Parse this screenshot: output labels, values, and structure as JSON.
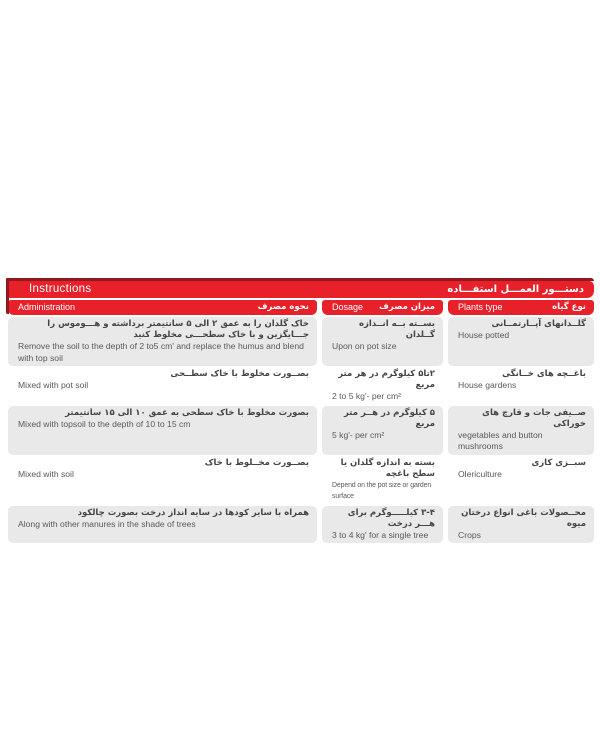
{
  "colors": {
    "red": "#e7202a",
    "dark_red": "#8e1a1f",
    "row_gray": "#e9e9e9",
    "text_gray": "#58595b"
  },
  "title": {
    "en": "Instructions",
    "fa": "دستـــور العمـــل استفـــاده"
  },
  "columns": {
    "administration": {
      "en": "Administration",
      "fa": "نحوه مصرف"
    },
    "dosage": {
      "en": "Dosage",
      "fa": "ميزان مصرف"
    },
    "plants": {
      "en": "Plants type",
      "fa": "نوع گياه"
    }
  },
  "rows": [
    {
      "administration": {
        "fa": "خاک گلدان را به عمق ۲ الی ۵ سانتیمتر برداشته و هـــوموس را جـــایگزین و با خاک سطحـــی مخلوط کنید",
        "en": "Remove the soil to the depth of 2 to5 cm' and replace the humus and blend with top soil"
      },
      "dosage": {
        "fa": "بســته بــه انــدازه گــلدان",
        "en": "Upon on pot size"
      },
      "plants": {
        "fa": "گلــدانهای آپــارتمــانی",
        "en": "House potted"
      }
    },
    {
      "administration": {
        "fa": "بصــورت مخلوط با خاک سطــحی",
        "en": "Mixed with pot soil"
      },
      "dosage": {
        "fa": "۲تا۵ کیلوگرم در هر متر مربع",
        "en": "2 to 5 kg'- per cm²"
      },
      "plants": {
        "fa": "باغــچه های خــانگی",
        "en": "House gardens"
      }
    },
    {
      "administration": {
        "fa": "بصورت مخلوط با خاک سطحی به عمق ۱۰ الی ۱۵ سانتیمتر",
        "en": "Mixed with topsoil to the depth of 10 to 15 cm"
      },
      "dosage": {
        "fa": "۵ کیلوگرم در هــر متر مربع",
        "en": "5 kg'- per cm²"
      },
      "plants": {
        "fa": "صــیفی جات و قارچ های خوراکی",
        "en": "vegetables and button mushrooms"
      }
    },
    {
      "administration": {
        "fa": "بصــورت مخــلوط با خاک",
        "en": "Mixed with soil"
      },
      "dosage": {
        "fa": "بسته به اندازه گلدان یا سطح باغچه",
        "en": "Depend on the pot size or garden surface"
      },
      "plants": {
        "fa": "سبــزی کاری",
        "en": "Olericulture"
      }
    },
    {
      "administration": {
        "fa": "همراه با سایر کودها در سایه انداز درخت بصورت چالکود",
        "en": "Along with other manures in the shade of trees"
      },
      "dosage": {
        "fa": "۳-۴ کیلـــــوگرم برای هـــر درخت",
        "en": "3 to 4 kg' for a single tree"
      },
      "plants": {
        "fa": "محــصولات باغی انواع درختان میوه",
        "en": "Crops"
      }
    }
  ]
}
